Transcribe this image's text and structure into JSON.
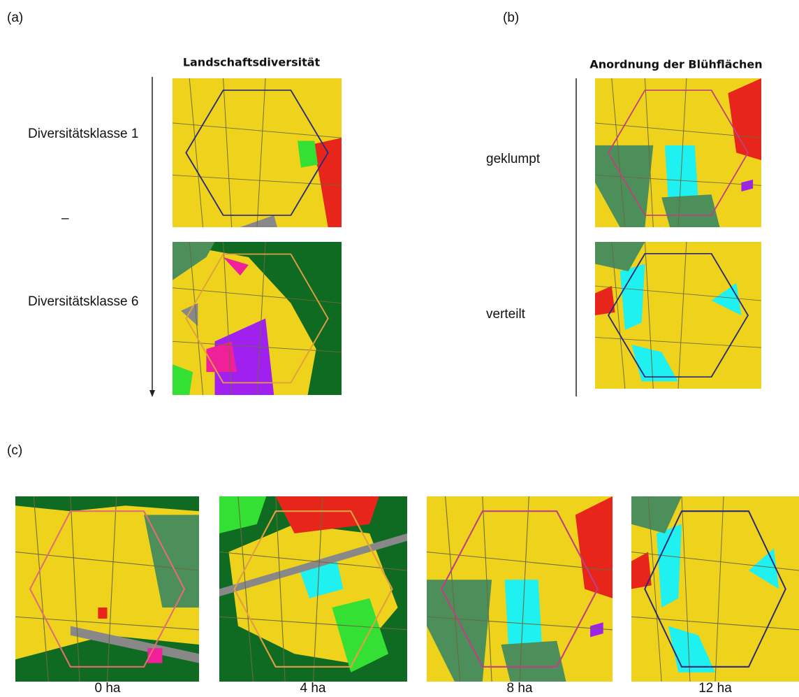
{
  "panel_a": {
    "label": "(a)",
    "title": "Landschaftsdiversität",
    "rows": [
      "Diversitätsklasse 1",
      "–",
      "Diversitätsklasse 6"
    ]
  },
  "panel_b": {
    "label": "(b)",
    "title": "Anordnung der Blühflächen",
    "rows": [
      "geklumpt",
      "verteilt"
    ]
  },
  "panel_c": {
    "label": "(c)",
    "captions": [
      "0 ha",
      "4 ha",
      "8 ha",
      "12 ha"
    ]
  }
}
